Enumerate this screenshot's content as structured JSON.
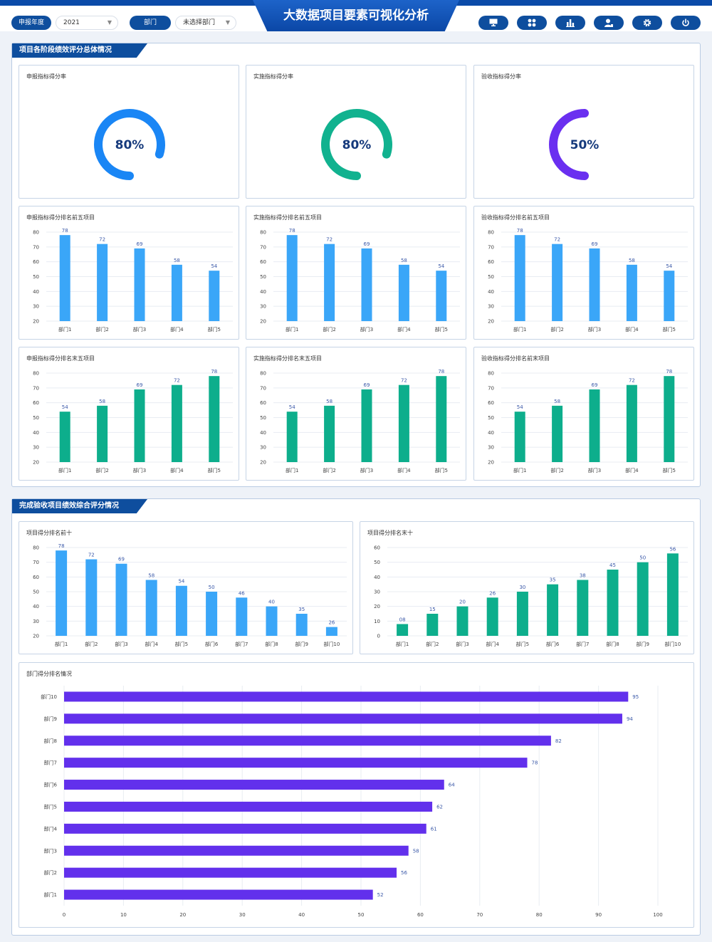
{
  "header": {
    "title": "大数据项目要素可视化分析",
    "year_label": "申报年度",
    "year_value": "2021",
    "dept_label": "部门",
    "dept_value": "未选择部门",
    "icons": [
      "monitor-icon",
      "apps-icon",
      "bar-chart-icon",
      "user-icon",
      "gear-icon",
      "power-icon"
    ]
  },
  "section1": {
    "title": "项目各阶段绩效评分总体情况",
    "donuts": [
      {
        "title": "申报指标得分率",
        "label": "80%",
        "value": 80,
        "color": "#1a86f5"
      },
      {
        "title": "实施指标得分率",
        "label": "80%",
        "value": 80,
        "color": "#11b28f"
      },
      {
        "title": "验收指标得分率",
        "label": "50%",
        "value": 50,
        "color": "#6a2ff0"
      }
    ]
  },
  "section2": {
    "title": "完成验收项目绩效综合评分情况"
  },
  "colors": {
    "blue_bar": "#3aa6f8",
    "green_bar": "#0dae8c",
    "purple_bar": "#6230ec",
    "brand": "#0e4e9e"
  },
  "chart_data": [
    {
      "id": "c1",
      "type": "bar",
      "title": "申报指标得分排名前五项目",
      "categories": [
        "部门1",
        "部门2",
        "部门3",
        "部门4",
        "部门5"
      ],
      "values": [
        78,
        72,
        69,
        58,
        54
      ],
      "ylim": [
        20,
        80
      ],
      "yticks": [
        20,
        30,
        40,
        50,
        60,
        70,
        80
      ],
      "color": "#3aa6f8"
    },
    {
      "id": "c2",
      "type": "bar",
      "title": "实施指标得分排名前五项目",
      "categories": [
        "部门1",
        "部门2",
        "部门3",
        "部门4",
        "部门5"
      ],
      "values": [
        78,
        72,
        69,
        58,
        54
      ],
      "ylim": [
        20,
        80
      ],
      "yticks": [
        20,
        30,
        40,
        50,
        60,
        70,
        80
      ],
      "color": "#3aa6f8"
    },
    {
      "id": "c3",
      "type": "bar",
      "title": "验收指标得分排名前五项目",
      "categories": [
        "部门1",
        "部门2",
        "部门3",
        "部门4",
        "部门5"
      ],
      "values": [
        78,
        72,
        69,
        58,
        54
      ],
      "ylim": [
        20,
        80
      ],
      "yticks": [
        20,
        30,
        40,
        50,
        60,
        70,
        80
      ],
      "color": "#3aa6f8"
    },
    {
      "id": "c4",
      "type": "bar",
      "title": "申报指标得分排名末五项目",
      "categories": [
        "部门1",
        "部门2",
        "部门3",
        "部门4",
        "部门5"
      ],
      "values": [
        54,
        58,
        69,
        72,
        78
      ],
      "ylim": [
        20,
        80
      ],
      "yticks": [
        20,
        30,
        40,
        50,
        60,
        70,
        80
      ],
      "color": "#0dae8c"
    },
    {
      "id": "c5",
      "type": "bar",
      "title": "实施指标得分排名末五项目",
      "categories": [
        "部门1",
        "部门2",
        "部门3",
        "部门4",
        "部门5"
      ],
      "values": [
        54,
        58,
        69,
        72,
        78
      ],
      "ylim": [
        20,
        80
      ],
      "yticks": [
        20,
        30,
        40,
        50,
        60,
        70,
        80
      ],
      "color": "#0dae8c"
    },
    {
      "id": "c6",
      "type": "bar",
      "title": "验收指标得分排名前末项目",
      "categories": [
        "部门1",
        "部门2",
        "部门3",
        "部门4",
        "部门5"
      ],
      "values": [
        54,
        58,
        69,
        72,
        78
      ],
      "ylim": [
        20,
        80
      ],
      "yticks": [
        20,
        30,
        40,
        50,
        60,
        70,
        80
      ],
      "color": "#0dae8c"
    },
    {
      "id": "c7",
      "type": "bar",
      "title": "项目得分排名前十",
      "categories": [
        "部门1",
        "部门2",
        "部门3",
        "部门4",
        "部门5",
        "部门6",
        "部门7",
        "部门8",
        "部门9",
        "部门10"
      ],
      "values": [
        78,
        72,
        69,
        58,
        54,
        50,
        46,
        40,
        35,
        26
      ],
      "value_labels": [
        "78",
        "72",
        "69",
        "58",
        "54",
        "50",
        "46",
        "40",
        "35",
        "26"
      ],
      "ylim": [
        20,
        80
      ],
      "yticks": [
        20,
        30,
        40,
        50,
        60,
        70,
        80
      ],
      "color": "#3aa6f8"
    },
    {
      "id": "c8",
      "type": "bar",
      "title": "项目得分排名末十",
      "categories": [
        "部门1",
        "部门2",
        "部门3",
        "部门4",
        "部门5",
        "部门6",
        "部门7",
        "部门8",
        "部门9",
        "部门10"
      ],
      "values": [
        8,
        15,
        20,
        26,
        30,
        35,
        38,
        45,
        50,
        56
      ],
      "value_labels": [
        "08",
        "15",
        "20",
        "26",
        "30",
        "35",
        "38",
        "45",
        "50",
        "56"
      ],
      "ylim": [
        0,
        60
      ],
      "yticks": [
        0,
        10,
        20,
        30,
        40,
        50,
        60
      ],
      "color": "#0dae8c"
    },
    {
      "id": "c9",
      "type": "bar",
      "orientation": "horizontal",
      "title": "部门得分排名情况",
      "categories": [
        "部门10",
        "部门9",
        "部门8",
        "部门7",
        "部门6",
        "部门5",
        "部门4",
        "部门3",
        "部门2",
        "部门1"
      ],
      "values": [
        95,
        94,
        82,
        78,
        64,
        62,
        61,
        58,
        56,
        52
      ],
      "xlim": [
        0,
        100
      ],
      "xticks": [
        0,
        10,
        20,
        30,
        40,
        50,
        60,
        70,
        80,
        90,
        100
      ],
      "color": "#6230ec"
    }
  ]
}
